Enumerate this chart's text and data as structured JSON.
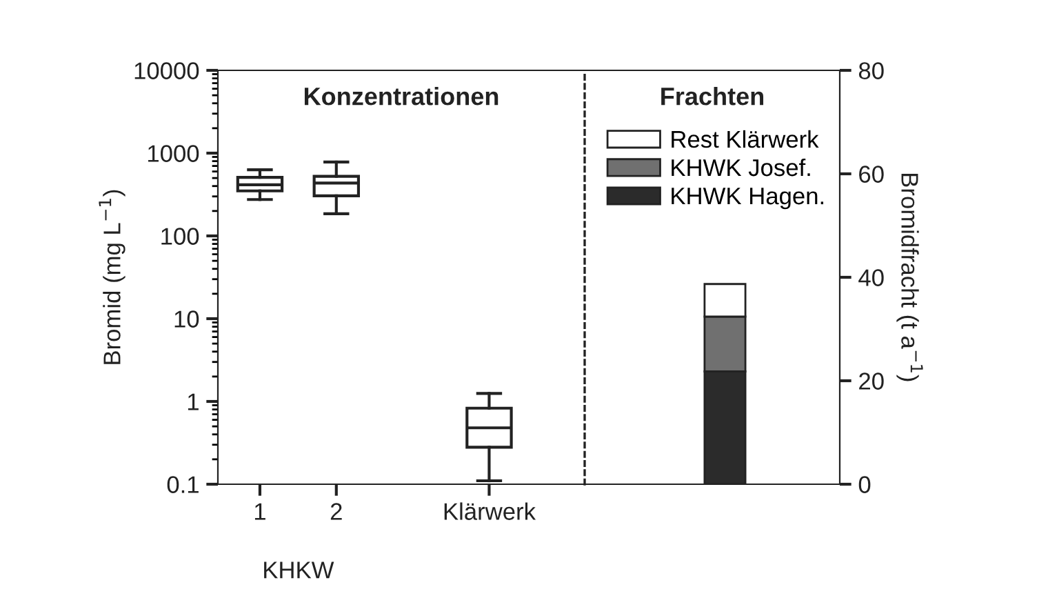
{
  "chart_data": [
    {
      "type": "box",
      "title": "Konzentrationen",
      "ylabel": "Bromid (mg L$^{−1}$)",
      "categories": [
        "1",
        "2",
        null,
        "Klärwerk"
      ],
      "boxes": [
        {
          "low": 275,
          "q1": 350,
          "median": 415,
          "q3": 510,
          "high": 630
        },
        {
          "low": 185,
          "q1": 305,
          "median": 435,
          "q3": 525,
          "high": 780
        },
        null,
        {
          "low": 0.11,
          "q1": 0.28,
          "median": 0.48,
          "q3": 0.83,
          "high": 1.25
        }
      ],
      "color": "#ffffff",
      "log": true,
      "ylim": [
        0.1,
        10000
      ],
      "yticks": [
        0.1,
        1,
        10,
        100,
        1000,
        10000
      ],
      "annotations": [
        "KHKW"
      ],
      "grid": false
    },
    {
      "type": "bar",
      "title": "Frachten",
      "ylabel": "Bromidfracht (t a$^{−1}$)",
      "categories": [
        null
      ],
      "stacked": true,
      "series": [
        {
          "name": "KHWK Hagen.",
          "color": "#2b2b2b",
          "values": [
            21.8
          ]
        },
        {
          "name": "KHWK Josef.",
          "color": "#707070",
          "values": [
            10.6
          ]
        },
        {
          "name": "Rest Klärwerk",
          "color": "#ffffff",
          "values": [
            6.3
          ]
        }
      ],
      "ylim": [
        0,
        80
      ],
      "yticks": [
        0,
        20,
        40,
        60,
        80
      ],
      "legend": "top right",
      "grid": false
    }
  ]
}
